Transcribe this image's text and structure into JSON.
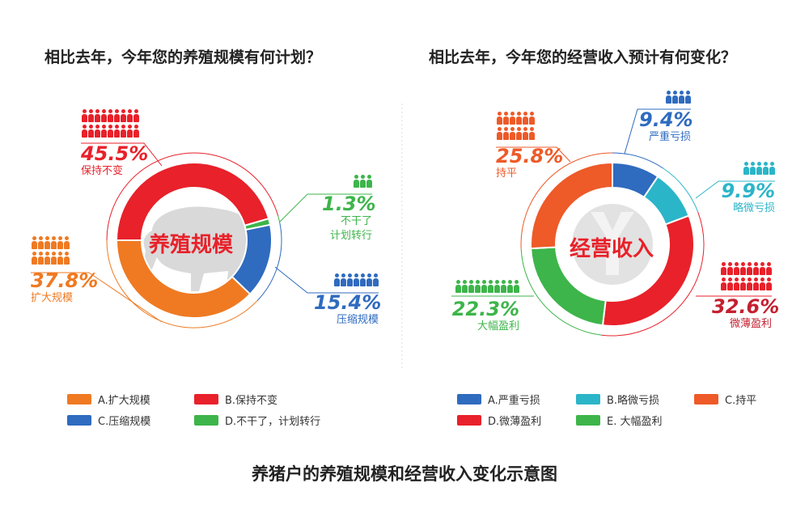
{
  "chart_data": [
    {
      "type": "pie",
      "variant": "donut",
      "title": "相比去年，今年您的养殖规模有何计划？",
      "center_label": "养殖规模",
      "slices": [
        {
          "key": "A",
          "legend": "A.扩大规模",
          "label": "扩大规模",
          "value": 37.8,
          "display": "37.8%",
          "color": "#ef7a22",
          "people_icons": 12
        },
        {
          "key": "B",
          "legend": "B.保持不变",
          "label": "保持不变",
          "value": 45.5,
          "display": "45.5%",
          "color": "#e8212a",
          "people_icons": 18
        },
        {
          "key": "C",
          "legend": "C.压缩规模",
          "label": "压缩规模",
          "value": 15.4,
          "display": "15.4%",
          "color": "#2f6bbf",
          "people_icons": 7
        },
        {
          "key": "D",
          "legend": "D.不干了，计划转行",
          "label_line1": "不干了",
          "label_line2": "计划转行",
          "value": 1.3,
          "display": "1.3%",
          "color": "#3db54a",
          "people_icons": 3
        }
      ],
      "clockwise_order": [
        "B",
        "D",
        "C",
        "A"
      ],
      "center_icon": "pig-silhouette"
    },
    {
      "type": "pie",
      "variant": "donut",
      "title": "相比去年，今年您的经营收入预计有何变化？",
      "center_label": "经营收入",
      "slices": [
        {
          "key": "A",
          "legend": "A.严重亏损",
          "label": "严重亏损",
          "value": 9.4,
          "display": "9.4%",
          "color": "#2f6bbf",
          "people_icons": 4
        },
        {
          "key": "B",
          "legend": "B.略微亏损",
          "label": "略微亏损",
          "value": 9.9,
          "display": "9.9%",
          "color": "#2bb5c8",
          "people_icons": 5
        },
        {
          "key": "C",
          "legend": "C.持平",
          "label": "持平",
          "value": 25.8,
          "display": "25.8%",
          "color": "#ee5a28",
          "people_icons": 12
        },
        {
          "key": "D",
          "legend": "D.微薄盈利",
          "label": "微薄盈利",
          "value": 32.6,
          "display": "32.6%",
          "color": "#e8212a",
          "text_color": "#c41f30",
          "people_icons": 16
        },
        {
          "key": "E",
          "legend": "E. 大幅盈利",
          "label": "大幅盈利",
          "value": 22.3,
          "display": "22.3%",
          "color": "#3db54a",
          "people_icons": 10
        }
      ],
      "clockwise_order": [
        "A",
        "B",
        "D",
        "E",
        "C"
      ],
      "center_icon": "yen-coin"
    }
  ],
  "footer_title": "养猪户的养殖规模和经营收入变化示意图"
}
